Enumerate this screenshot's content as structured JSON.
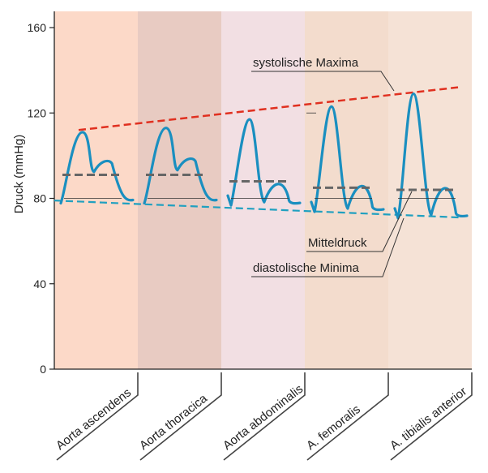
{
  "chart_data": {
    "type": "line",
    "title": "",
    "ylabel": "Druck (mmHg)",
    "ylim": [
      0,
      165
    ],
    "yticks": [
      0,
      40,
      80,
      120,
      160
    ],
    "grid": false,
    "regions": [
      {
        "label": "Aorta ascendens",
        "color": "#fcd9c8"
      },
      {
        "label": "Aorta thoracica",
        "color": "#e8cbc2"
      },
      {
        "label": "Aorta abdominalis",
        "color": "#f2dfe3"
      },
      {
        "label": "A. femoralis",
        "color": "#f3dccd"
      },
      {
        "label": "A. tibialis anterior",
        "color": "#f5e2d6"
      }
    ],
    "systolic_maxima_line": {
      "label": "systolische Maxima",
      "y_start": 112,
      "y_end": 132,
      "color": "#e03020"
    },
    "diastolic_minima_line": {
      "label": "diastolische Minima",
      "y_start": 79,
      "y_end": 71,
      "color": "#20a0c0"
    },
    "mean_pressure_label": "Mitteldruck",
    "pulse_waves": [
      {
        "region": "Aorta ascendens",
        "systolic": 111,
        "diastolic": 80,
        "mean_pressure": 91
      },
      {
        "region": "Aorta thoracica",
        "systolic": 113,
        "diastolic": 80,
        "mean_pressure": 91
      },
      {
        "region": "Aorta abdominalis",
        "systolic": 117,
        "diastolic": 79,
        "mean_pressure": 88
      },
      {
        "region": "A. femoralis",
        "systolic": 123,
        "diastolic": 76,
        "mean_pressure": 85
      },
      {
        "region": "A. tibialis anterior",
        "systolic": 129,
        "diastolic": 73,
        "mean_pressure": 84
      }
    ],
    "wave_color": "#1a8fc0",
    "mean_line_color": "#666666"
  }
}
